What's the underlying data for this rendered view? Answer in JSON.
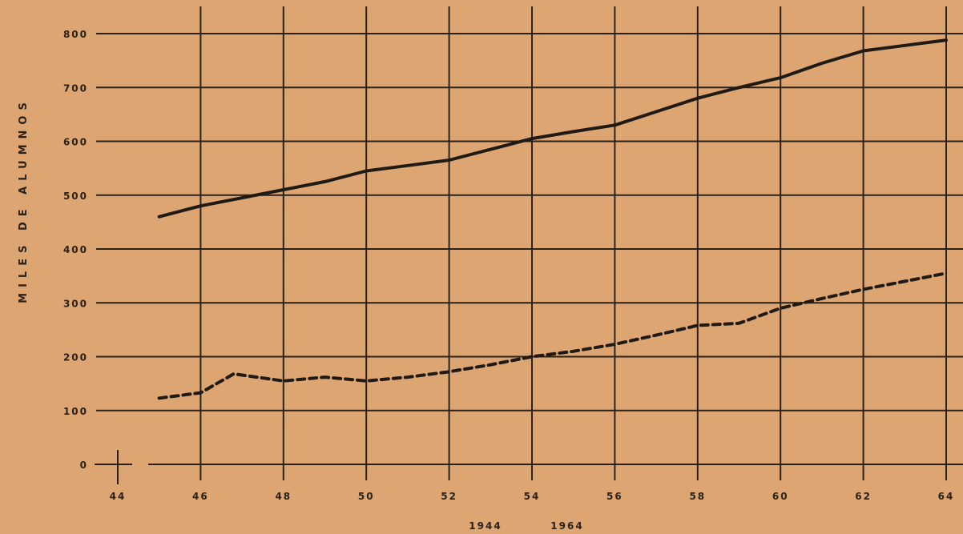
{
  "chart_data": {
    "type": "line",
    "ylabel": "MILES DE ALUMNOS",
    "period_label_start": "1944",
    "period_label_end": "1964",
    "x_tick_labels": [
      "44",
      "46",
      "48",
      "50",
      "52",
      "54",
      "56",
      "58",
      "60",
      "62",
      "64"
    ],
    "y_tick_labels": [
      "0",
      "100",
      "200",
      "300",
      "400",
      "500",
      "600",
      "700",
      "800"
    ],
    "x_ticks": [
      44,
      46,
      48,
      50,
      52,
      54,
      56,
      58,
      60,
      62,
      64
    ],
    "y_ticks": [
      0,
      100,
      200,
      300,
      400,
      500,
      600,
      700,
      800
    ],
    "xlim": [
      44,
      64
    ],
    "ylim": [
      0,
      800
    ],
    "grid": true,
    "series": [
      {
        "style": "solid",
        "color": "#1f1a14",
        "x": [
          45,
          46,
          47,
          48,
          49,
          50,
          51,
          52,
          53,
          54,
          55,
          56,
          57,
          58,
          59,
          60,
          61,
          62,
          63,
          64
        ],
        "y": [
          460,
          480,
          495,
          510,
          525,
          545,
          555,
          565,
          585,
          605,
          618,
          630,
          655,
          680,
          700,
          718,
          745,
          768,
          778,
          788
        ]
      },
      {
        "style": "dashed",
        "color": "#1f1a14",
        "x": [
          45,
          46,
          46.8,
          48,
          49,
          50,
          51,
          52,
          53,
          54,
          55,
          56,
          57,
          58,
          59,
          60,
          61,
          62,
          63,
          64
        ],
        "y": [
          123,
          133,
          168,
          155,
          162,
          155,
          162,
          172,
          185,
          200,
          210,
          223,
          240,
          258,
          262,
          290,
          308,
          325,
          340,
          355
        ]
      }
    ]
  }
}
